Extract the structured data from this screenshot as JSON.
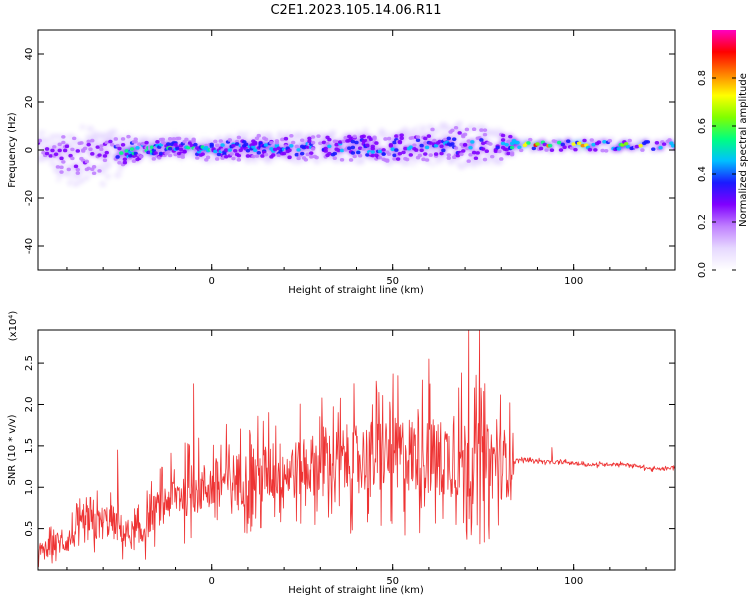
{
  "title": "C2E1.2023.105.14.06.R11",
  "chart_data": [
    {
      "type": "heatmap",
      "xlabel": "Height of straight line (km)",
      "ylabel": "Frequency (Hz)",
      "xlim": [
        -48,
        128
      ],
      "ylim": [
        -50,
        50
      ],
      "xticks": [
        "0",
        "50",
        "100"
      ],
      "xtick_values": [
        0,
        50,
        100
      ],
      "yticks": [
        "40",
        "20",
        "0",
        "-20",
        "-40"
      ],
      "ytick_values": [
        40,
        20,
        0,
        -20,
        -40
      ],
      "colorbar": {
        "label": "Normalized spectral amplitude",
        "ticks": [
          "0.0",
          "0.2",
          "0.4",
          "0.6",
          "0.8"
        ],
        "tick_values": [
          0.0,
          0.2,
          0.4,
          0.6,
          0.8
        ],
        "range": [
          0,
          1
        ],
        "colormap": "rainbow",
        "colors": [
          "#ffffff",
          "#e6d8ff",
          "#c080ff",
          "#8000ff",
          "#1a1aff",
          "#00c0ff",
          "#00ff80",
          "#80ff00",
          "#ffff00",
          "#ff8000",
          "#ff0000",
          "#ff00c0"
        ]
      },
      "band": {
        "x": [
          -48,
          -40,
          -30,
          -20,
          -10,
          0,
          10,
          20,
          30,
          40,
          50,
          60,
          70,
          78,
          82,
          84,
          90,
          100,
          110,
          120,
          128
        ],
        "center_freq": [
          1,
          -3,
          -2,
          0,
          1,
          0,
          1,
          1,
          1,
          1,
          1,
          2,
          2,
          2,
          2,
          2,
          2,
          2,
          2,
          2,
          2
        ],
        "half_width": [
          6,
          12,
          11,
          4,
          4,
          4,
          5,
          5,
          5,
          6,
          6,
          7,
          8,
          8,
          6,
          2,
          2,
          2,
          2,
          2,
          2
        ],
        "peak_amplitude": [
          0.3,
          0.35,
          0.35,
          0.75,
          0.6,
          0.65,
          0.6,
          0.6,
          0.55,
          0.6,
          0.55,
          0.5,
          0.5,
          0.45,
          0.45,
          0.9,
          0.95,
          0.95,
          0.95,
          0.9,
          0.9
        ]
      }
    },
    {
      "type": "line",
      "xlabel": "Height of straight line (km)",
      "ylabel": "SNR (10 * v/v)",
      "y_multiplier": "(x10⁴)",
      "xlim": [
        -48,
        128
      ],
      "ylim": [
        0,
        2.9
      ],
      "xticks": [
        "0",
        "50",
        "100"
      ],
      "xtick_values": [
        0,
        50,
        100
      ],
      "yticks": [
        "0.5",
        "1.0",
        "1.5",
        "2.0",
        "2.5"
      ],
      "ytick_values": [
        0.5,
        1.0,
        1.5,
        2.0,
        2.5
      ],
      "series": [
        {
          "color": "#ee3333",
          "x": [
            -48,
            -44,
            -40,
            -36,
            -32,
            -28,
            -24,
            -20,
            -16,
            -12,
            -10,
            -6,
            -2,
            2,
            6,
            10,
            14,
            18,
            22,
            26,
            30,
            34,
            38,
            42,
            46,
            50,
            54,
            58,
            62,
            66,
            70,
            72,
            74,
            78,
            82,
            84,
            86,
            90,
            94,
            98,
            102,
            106,
            110,
            114,
            118,
            122,
            126,
            128
          ],
          "mean": [
            0.2,
            0.3,
            0.35,
            0.5,
            0.55,
            0.6,
            0.45,
            0.4,
            0.7,
            0.85,
            0.9,
            0.95,
            1.0,
            1.05,
            1.1,
            1.1,
            1.15,
            1.2,
            1.2,
            1.25,
            1.3,
            1.3,
            1.35,
            1.35,
            1.4,
            1.4,
            1.4,
            1.4,
            1.35,
            1.35,
            1.35,
            1.3,
            1.3,
            1.3,
            1.3,
            1.33,
            1.33,
            1.32,
            1.3,
            1.3,
            1.28,
            1.27,
            1.28,
            1.28,
            1.25,
            1.22,
            1.22,
            1.25
          ],
          "noise": [
            0.15,
            0.2,
            0.25,
            0.3,
            0.35,
            0.35,
            0.3,
            0.3,
            0.35,
            0.4,
            0.45,
            0.5,
            0.5,
            0.55,
            0.55,
            0.55,
            0.6,
            0.6,
            0.6,
            0.6,
            0.65,
            0.65,
            0.7,
            0.7,
            0.75,
            0.75,
            0.8,
            0.8,
            0.8,
            0.8,
            0.85,
            0.85,
            0.8,
            0.75,
            0.7,
            0.03,
            0.03,
            0.03,
            0.03,
            0.03,
            0.03,
            0.03,
            0.03,
            0.03,
            0.03,
            0.03,
            0.03,
            0.03
          ],
          "peaks": [
            {
              "x": -26,
              "y": 1.45
            },
            {
              "x": -5,
              "y": 2.25
            },
            {
              "x": 60,
              "y": 2.55
            },
            {
              "x": 71,
              "y": 2.9
            },
            {
              "x": 74,
              "y": 2.9
            },
            {
              "x": 94,
              "y": 1.48
            }
          ]
        }
      ]
    }
  ]
}
